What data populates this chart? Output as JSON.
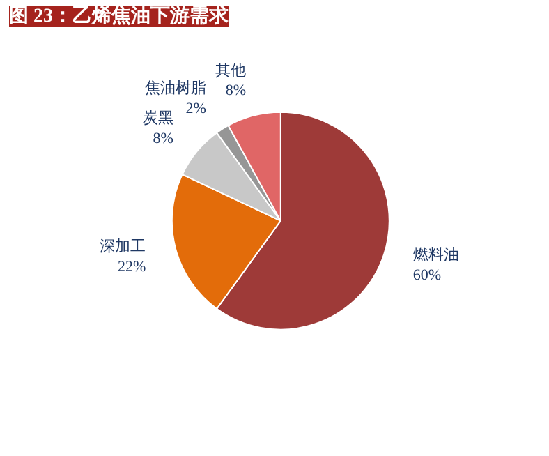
{
  "chart_data": {
    "type": "pie",
    "title": "图 23：乙烯焦油下游需求",
    "categories": [
      "燃料油",
      "深加工",
      "炭黑",
      "焦油树脂",
      "其他"
    ],
    "values": [
      60,
      22,
      8,
      2,
      8
    ],
    "colors": [
      "#9e3a38",
      "#e36c0a",
      "#c8c8c8",
      "#969696",
      "#e06666"
    ],
    "value_labels": [
      "60%",
      "22%",
      "8%",
      "2%",
      "8%"
    ]
  }
}
